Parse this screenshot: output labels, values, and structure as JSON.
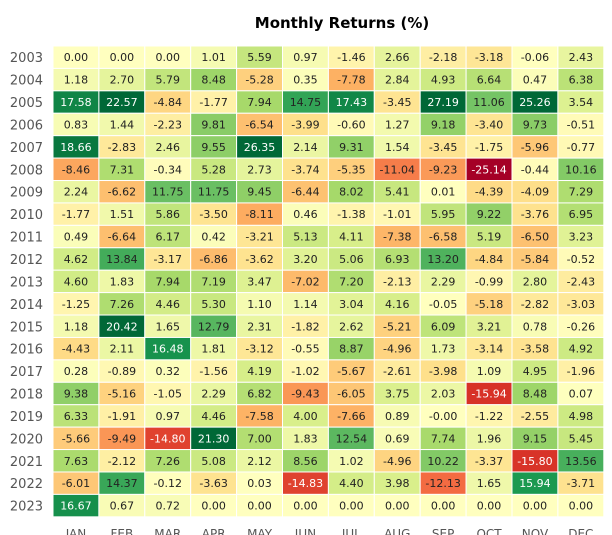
{
  "chart_data": {
    "type": "heatmap",
    "title": "Monthly Returns (%)",
    "xlabel": "",
    "ylabel": "",
    "categories": [
      "JAN",
      "FEB",
      "MAR",
      "APR",
      "MAY",
      "JUN",
      "JUL",
      "AUG",
      "SEP",
      "OCT",
      "NOV",
      "DEC"
    ],
    "rows": [
      "2003",
      "2004",
      "2005",
      "2006",
      "2007",
      "2008",
      "2009",
      "2010",
      "2011",
      "2012",
      "2013",
      "2014",
      "2015",
      "2016",
      "2017",
      "2018",
      "2019",
      "2020",
      "2021",
      "2022",
      "2023"
    ],
    "values": [
      [
        "0.00",
        "0.00",
        "0.00",
        "1.01",
        "5.59",
        "0.97",
        "-1.46",
        "2.66",
        "-2.18",
        "-3.18",
        "-0.06",
        "2.43"
      ],
      [
        "1.18",
        "2.70",
        "5.79",
        "8.48",
        "-5.28",
        "0.35",
        "-7.78",
        "2.84",
        "4.93",
        "6.64",
        "0.47",
        "6.38"
      ],
      [
        "17.58",
        "22.57",
        "-4.84",
        "-1.77",
        "7.94",
        "14.75",
        "17.43",
        "-3.45",
        "27.19",
        "11.06",
        "25.26",
        "3.54"
      ],
      [
        "0.83",
        "1.44",
        "-2.23",
        "9.81",
        "-6.54",
        "-3.99",
        "-0.60",
        "1.27",
        "9.18",
        "-3.40",
        "9.73",
        "-0.51"
      ],
      [
        "18.66",
        "-2.83",
        "2.46",
        "9.55",
        "26.35",
        "2.14",
        "9.31",
        "1.54",
        "-3.45",
        "-1.75",
        "-5.96",
        "-0.77"
      ],
      [
        "-8.46",
        "7.31",
        "-0.34",
        "5.28",
        "2.73",
        "-3.74",
        "-5.35",
        "-11.04",
        "-9.23",
        "-25.14",
        "-0.44",
        "10.16"
      ],
      [
        "2.24",
        "-6.62",
        "11.75",
        "11.75",
        "9.45",
        "-6.44",
        "8.02",
        "5.41",
        "0.01",
        "-4.39",
        "-4.09",
        "7.29"
      ],
      [
        "-1.77",
        "1.51",
        "5.86",
        "-3.50",
        "-8.11",
        "0.46",
        "-1.38",
        "-1.01",
        "5.95",
        "9.22",
        "-3.76",
        "6.95"
      ],
      [
        "0.49",
        "-6.64",
        "6.17",
        "0.42",
        "-3.21",
        "5.13",
        "4.11",
        "-7.38",
        "-6.58",
        "5.19",
        "-6.50",
        "3.23"
      ],
      [
        "4.62",
        "13.84",
        "-3.17",
        "-6.86",
        "-3.62",
        "3.20",
        "5.06",
        "6.93",
        "13.20",
        "-4.84",
        "-5.84",
        "-0.52"
      ],
      [
        "4.60",
        "1.83",
        "7.94",
        "7.19",
        "3.47",
        "-7.02",
        "7.20",
        "-2.13",
        "2.29",
        "-0.99",
        "2.80",
        "-2.43"
      ],
      [
        "-1.25",
        "7.26",
        "4.46",
        "5.30",
        "1.10",
        "1.14",
        "3.04",
        "4.16",
        "-0.05",
        "-5.18",
        "-2.82",
        "-3.03"
      ],
      [
        "1.18",
        "20.42",
        "1.65",
        "12.79",
        "2.31",
        "-1.82",
        "2.62",
        "-5.21",
        "6.09",
        "3.21",
        "0.78",
        "-0.26"
      ],
      [
        "-4.43",
        "2.11",
        "16.48",
        "1.81",
        "-3.12",
        "-0.55",
        "8.87",
        "-4.96",
        "1.73",
        "-3.14",
        "-3.58",
        "4.92"
      ],
      [
        "0.28",
        "-0.89",
        "0.32",
        "-1.56",
        "4.19",
        "-1.02",
        "-5.67",
        "-2.61",
        "-3.98",
        "1.09",
        "4.95",
        "-1.96"
      ],
      [
        "9.38",
        "-5.16",
        "-1.05",
        "2.29",
        "6.82",
        "-9.43",
        "-6.05",
        "3.75",
        "2.03",
        "-15.94",
        "8.48",
        "0.07"
      ],
      [
        "6.33",
        "-1.91",
        "0.97",
        "4.46",
        "-7.58",
        "4.00",
        "-7.66",
        "0.89",
        "-0.00",
        "-1.22",
        "-2.55",
        "4.98"
      ],
      [
        "-5.66",
        "-9.49",
        "-14.80",
        "21.30",
        "7.00",
        "1.83",
        "12.54",
        "0.69",
        "7.74",
        "1.96",
        "9.15",
        "5.45"
      ],
      [
        "7.63",
        "-2.12",
        "7.26",
        "5.08",
        "2.12",
        "8.56",
        "1.02",
        "-4.96",
        "10.22",
        "-3.37",
        "-15.80",
        "13.56"
      ],
      [
        "-6.01",
        "14.37",
        "-0.12",
        "-3.63",
        "0.03",
        "-14.83",
        "4.40",
        "3.98",
        "-12.13",
        "1.65",
        "15.94",
        "-3.71"
      ],
      [
        "16.67",
        "0.67",
        "0.72",
        "0.00",
        "0.00",
        "0.00",
        "0.00",
        "0.00",
        "0.00",
        "0.00",
        "0.00",
        "0.00"
      ]
    ],
    "color_scale": "red-yellow-green",
    "color_range": [
      -20,
      20
    ],
    "colors": {
      "title": "#000000",
      "tick": "#555555",
      "cell_text": "#222222",
      "cell_text_light": "#ffffff",
      "grid": "#ffffff"
    }
  }
}
